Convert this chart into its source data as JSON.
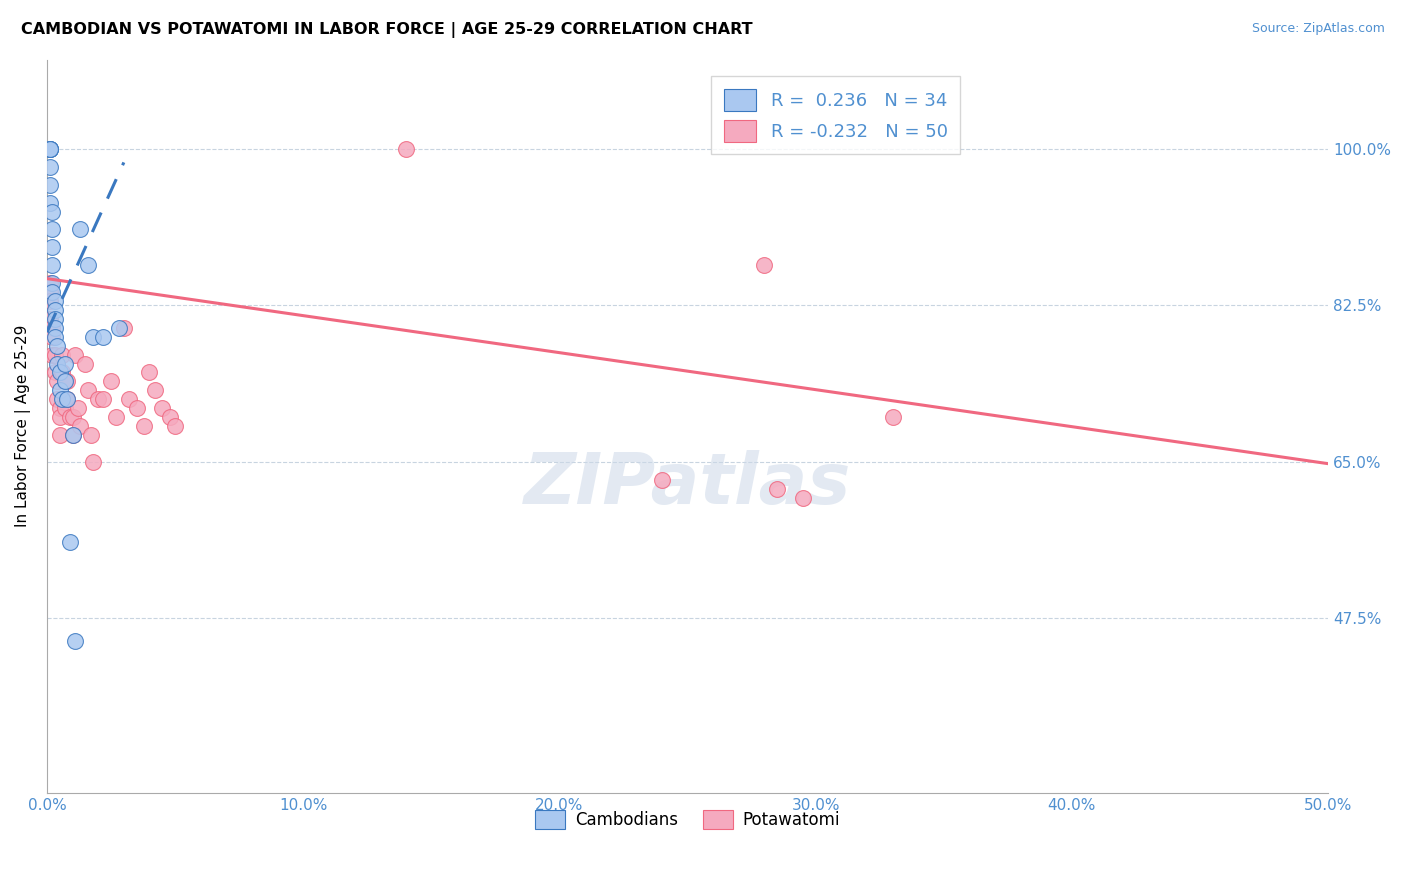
{
  "title": "CAMBODIAN VS POTAWATOMI IN LABOR FORCE | AGE 25-29 CORRELATION CHART",
  "source": "Source: ZipAtlas.com",
  "ylabel": "In Labor Force | Age 25-29",
  "xmin": 0.0,
  "xmax": 0.5,
  "ymin": 0.28,
  "ymax": 1.1,
  "ytick_vals": [
    0.475,
    0.65,
    0.825,
    1.0
  ],
  "ytick_labels": [
    "47.5%",
    "65.0%",
    "82.5%",
    "100.0%"
  ],
  "xtick_vals": [
    0.0,
    0.1,
    0.2,
    0.3,
    0.4,
    0.5
  ],
  "xtick_labels": [
    "0.0%",
    "10.0%",
    "20.0%",
    "30.0%",
    "40.0%",
    "50.0%"
  ],
  "legend_r_cambodian": "0.236",
  "legend_n_cambodian": "34",
  "legend_r_potawatomi": "-0.232",
  "legend_n_potawatomi": "50",
  "legend_label_cambodian": "Cambodians",
  "legend_label_potawatomi": "Potawatomi",
  "cambodian_color": "#aac8f0",
  "potawatomi_color": "#f5aabf",
  "trend_blue": "#3a78c0",
  "trend_pink": "#f06880",
  "watermark": "ZIPatlas",
  "cambodian_x": [
    0.001,
    0.001,
    0.001,
    0.001,
    0.001,
    0.001,
    0.001,
    0.002,
    0.002,
    0.002,
    0.002,
    0.002,
    0.002,
    0.003,
    0.003,
    0.003,
    0.003,
    0.003,
    0.004,
    0.004,
    0.005,
    0.005,
    0.006,
    0.007,
    0.007,
    0.008,
    0.009,
    0.01,
    0.011,
    0.013,
    0.016,
    0.018,
    0.022,
    0.028
  ],
  "cambodian_y": [
    1.0,
    1.0,
    1.0,
    1.0,
    0.98,
    0.96,
    0.94,
    0.93,
    0.91,
    0.89,
    0.87,
    0.85,
    0.84,
    0.83,
    0.82,
    0.81,
    0.8,
    0.79,
    0.78,
    0.76,
    0.75,
    0.73,
    0.72,
    0.76,
    0.74,
    0.72,
    0.56,
    0.68,
    0.45,
    0.91,
    0.87,
    0.79,
    0.79,
    0.8
  ],
  "potawatomi_x": [
    0.001,
    0.001,
    0.001,
    0.001,
    0.002,
    0.002,
    0.002,
    0.003,
    0.003,
    0.004,
    0.004,
    0.005,
    0.005,
    0.005,
    0.006,
    0.006,
    0.007,
    0.007,
    0.007,
    0.008,
    0.008,
    0.009,
    0.01,
    0.01,
    0.011,
    0.012,
    0.013,
    0.015,
    0.016,
    0.017,
    0.018,
    0.02,
    0.022,
    0.025,
    0.027,
    0.03,
    0.032,
    0.035,
    0.038,
    0.04,
    0.042,
    0.045,
    0.048,
    0.05,
    0.14,
    0.28,
    0.33,
    0.24,
    0.285,
    0.295
  ],
  "potawatomi_y": [
    0.85,
    0.84,
    0.83,
    0.81,
    0.8,
    0.79,
    0.77,
    0.77,
    0.75,
    0.74,
    0.72,
    0.71,
    0.7,
    0.68,
    0.77,
    0.75,
    0.74,
    0.72,
    0.71,
    0.74,
    0.72,
    0.7,
    0.7,
    0.68,
    0.77,
    0.71,
    0.69,
    0.76,
    0.73,
    0.68,
    0.65,
    0.72,
    0.72,
    0.74,
    0.7,
    0.8,
    0.72,
    0.71,
    0.69,
    0.75,
    0.73,
    0.71,
    0.7,
    0.69,
    1.0,
    0.87,
    0.7,
    0.63,
    0.62,
    0.61
  ],
  "pink_trend_x0": 0.0,
  "pink_trend_x1": 0.5,
  "pink_trend_y0": 0.855,
  "pink_trend_y1": 0.648,
  "blue_trend_x0": 0.0,
  "blue_trend_x1": 0.03,
  "blue_trend_y0": 0.795,
  "blue_trend_y1": 0.985
}
